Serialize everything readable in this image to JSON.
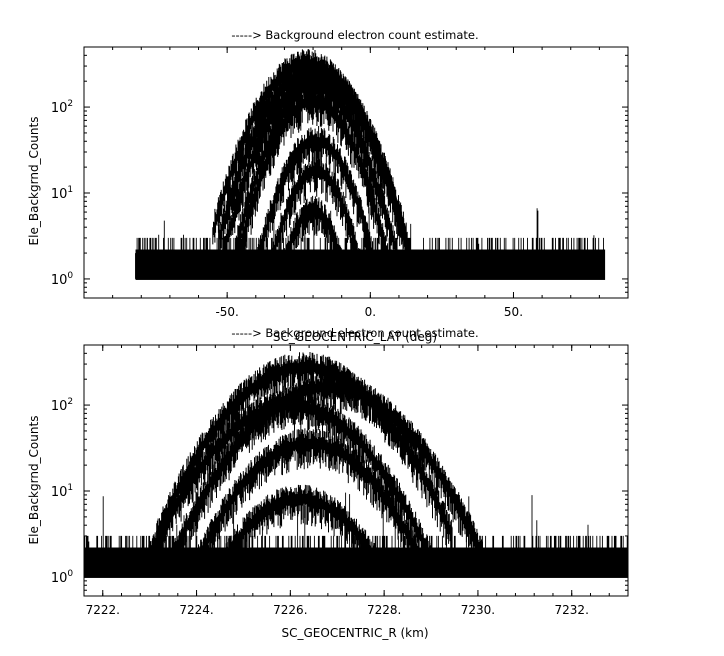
{
  "chart_data": [
    {
      "type": "line",
      "title": "-----> Background electron count estimate.",
      "xlabel": "SC_GEOCENTRIC_LAT (deg)",
      "ylabel": "Ele_Backgrnd_Counts",
      "xlim": [
        -100,
        90
      ],
      "ylim_log": [
        0.6,
        500
      ],
      "y_scale": "log",
      "grid": false,
      "x_ticks": [
        {
          "value": -50,
          "label": "-50."
        },
        {
          "value": 0,
          "label": "0."
        },
        {
          "value": 50,
          "label": "50."
        }
      ],
      "y_ticks": [
        {
          "exp": 0,
          "base": "10",
          "sup": "0"
        },
        {
          "exp": 1,
          "base": "10",
          "sup": "1"
        },
        {
          "exp": 2,
          "base": "10",
          "sup": "2"
        }
      ],
      "data_x_range": [
        -82,
        82
      ],
      "noise_floor": {
        "values": [
          1,
          2,
          3
        ],
        "spike_max": 7
      },
      "peaks": [
        {
          "center": -22,
          "peak": 360,
          "width": 11
        },
        {
          "center": -20,
          "peak": 290,
          "width": 11
        },
        {
          "center": -17,
          "peak": 230,
          "width": 10
        },
        {
          "center": -21,
          "peak": 210,
          "width": 10
        },
        {
          "center": -20,
          "peak": 130,
          "width": 9
        },
        {
          "center": -19,
          "peak": 45,
          "width": 8
        },
        {
          "center": -19,
          "peak": 20,
          "width": 7
        },
        {
          "center": -20,
          "peak": 7,
          "width": 6
        }
      ]
    },
    {
      "type": "line",
      "title": "-----> Background electron count estimate.",
      "xlabel": "SC_GEOCENTRIC_R (km)",
      "ylabel": "Ele_Backgrnd_Counts",
      "xlim": [
        7221.6,
        7233.2
      ],
      "ylim_log": [
        0.6,
        500
      ],
      "y_scale": "log",
      "grid": false,
      "x_ticks": [
        {
          "value": 7222,
          "label": "7222."
        },
        {
          "value": 7224,
          "label": "7224."
        },
        {
          "value": 7226,
          "label": "7226."
        },
        {
          "value": 7228,
          "label": "7228."
        },
        {
          "value": 7230,
          "label": "7230."
        },
        {
          "value": 7232,
          "label": "7232."
        }
      ],
      "y_ticks": [
        {
          "exp": 0,
          "base": "10",
          "sup": "0"
        },
        {
          "exp": 1,
          "base": "10",
          "sup": "1"
        },
        {
          "exp": 2,
          "base": "10",
          "sup": "2"
        }
      ],
      "data_x_range": [
        7221.6,
        7233.2
      ],
      "noise_floor": {
        "values": [
          1,
          2,
          3
        ],
        "spike_max": 10
      },
      "peaks": [
        {
          "center": 7226.3,
          "peak": 310,
          "width": 1.05
        },
        {
          "center": 7226.8,
          "peak": 180,
          "width": 1.1
        },
        {
          "center": 7226.0,
          "peak": 110,
          "width": 1.05
        },
        {
          "center": 7226.4,
          "peak": 40,
          "width": 0.95
        },
        {
          "center": 7226.2,
          "peak": 9,
          "width": 0.9
        }
      ]
    }
  ]
}
